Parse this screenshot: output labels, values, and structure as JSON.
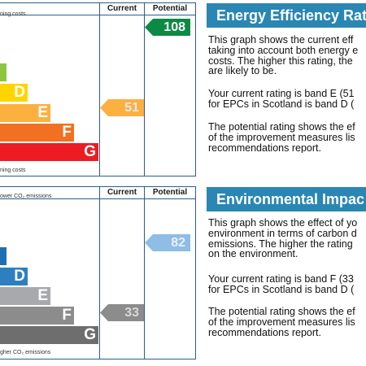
{
  "energy": {
    "header_current": "Current",
    "header_potential": "Potential",
    "top_note": "ning costs",
    "bottom_note": "ning costs",
    "bands": [
      {
        "letter": "",
        "color": "#8cc63e"
      },
      {
        "letter": "D",
        "color": "#ffd500"
      },
      {
        "letter": "E",
        "color": "#fcb040"
      },
      {
        "letter": "F",
        "color": "#f17022"
      },
      {
        "letter": "G",
        "color": "#ec1c24"
      }
    ],
    "current_value": "51",
    "current_color": "#fcb040",
    "potential_value": "108",
    "potential_color": "#0c8a43",
    "title": "Energy Efficiency Rat",
    "p1": [
      "This graph shows the current eff",
      "taking into account both energy e",
      "costs. The higher this rating, the",
      "are likely to be."
    ],
    "p2": [
      "Your current rating is band E (51",
      "for EPCs in Scotland is band D ("
    ],
    "p3": [
      "The potential rating shows the ef",
      "of the improvement measures lis",
      "recommendations report."
    ]
  },
  "environment": {
    "header_current": "Current",
    "header_potential": "Potential",
    "top_note": "ower CO₂ emissions",
    "bottom_note": "gher CO₂ emissions",
    "bands": [
      {
        "letter": "",
        "color": "#1f6fb5"
      },
      {
        "letter": "D",
        "color": "#2e7fc0"
      },
      {
        "letter": "E",
        "color": "#a7a9ac"
      },
      {
        "letter": "F",
        "color": "#8c8c8c"
      },
      {
        "letter": "G",
        "color": "#6e6e6e"
      }
    ],
    "current_value": "33",
    "current_color": "#8c8c8c",
    "potential_value": "82",
    "potential_color": "#8ebde6",
    "title": "Environmental Impac",
    "p1": [
      "This graph shows the effect of yo",
      "environment in terms of carbon d",
      "emissions. The higher the rating",
      "on the environment."
    ],
    "p2": [
      "Your current rating is band F (33",
      "for EPCs in Scotland is band D ("
    ],
    "p3": [
      "The potential rating shows the ef",
      "of the improvement measures lis",
      "recommendations report."
    ]
  }
}
